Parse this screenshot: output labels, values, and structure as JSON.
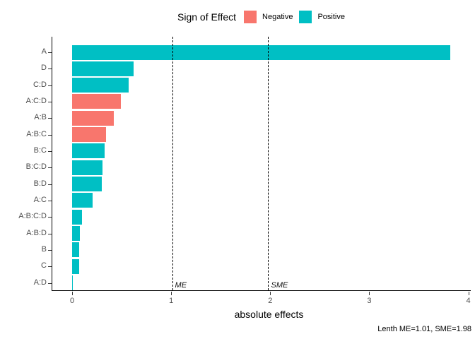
{
  "legend": {
    "title": "Sign of Effect",
    "items": [
      {
        "label": "Negative",
        "color": "#F8766D"
      },
      {
        "label": "Positive",
        "color": "#00BFC4"
      }
    ]
  },
  "chart_data": {
    "type": "bar",
    "orientation": "horizontal",
    "title": "",
    "xlabel": "absolute effects",
    "ylabel": "",
    "xlim": [
      0,
      4
    ],
    "xticks": [
      0,
      1,
      2,
      3,
      4
    ],
    "grid": false,
    "legend_position": "top",
    "categories": [
      "A",
      "D",
      "C:D",
      "A:C:D",
      "A:B",
      "A:B:C",
      "B:C",
      "B:C:D",
      "B:D",
      "A:C",
      "A:B:C:D",
      "A:B:D",
      "B",
      "C",
      "A:D"
    ],
    "values": [
      3.82,
      0.62,
      0.57,
      0.49,
      0.42,
      0.34,
      0.33,
      0.31,
      0.3,
      0.21,
      0.1,
      0.08,
      0.07,
      0.07,
      0.005
    ],
    "signs": [
      "Positive",
      "Positive",
      "Positive",
      "Negative",
      "Negative",
      "Negative",
      "Positive",
      "Positive",
      "Positive",
      "Positive",
      "Positive",
      "Positive",
      "Positive",
      "Positive",
      "Positive"
    ],
    "colors": {
      "Negative": "#F8766D",
      "Positive": "#00BFC4"
    },
    "reference_lines": [
      {
        "label": "ME",
        "value": 1.01
      },
      {
        "label": "SME",
        "value": 1.98
      }
    ],
    "caption": "Lenth ME=1.01, SME=1.98"
  }
}
